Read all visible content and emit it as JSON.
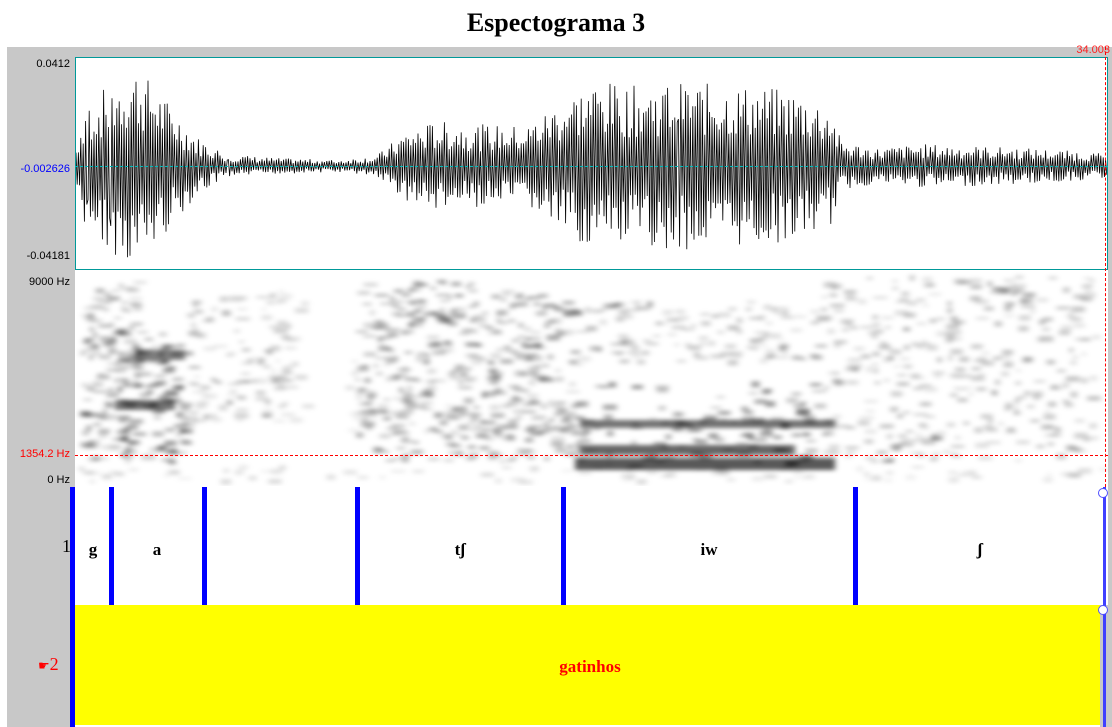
{
  "title": "Espectograma 3",
  "time_readout": "34.003",
  "waveform": {
    "amp_max": "0.0412",
    "amp_center": "-0.002626",
    "amp_min": "-0.04181"
  },
  "spectrogram": {
    "freq_max": "9000 Hz",
    "freq_cursor": "1354.2 Hz",
    "freq_min": "0 Hz"
  },
  "tiers": [
    {
      "number": "1",
      "segments": [
        "g",
        "a",
        "",
        "tʃ",
        "iw",
        "ʃ"
      ]
    },
    {
      "number": "2",
      "pointer_icon": "pointing-hand-icon",
      "word": "gatinhos"
    }
  ],
  "colors": {
    "boundary": "#0000ff",
    "word_tier_bg": "#ffff00",
    "cursor": "#ff0000"
  }
}
